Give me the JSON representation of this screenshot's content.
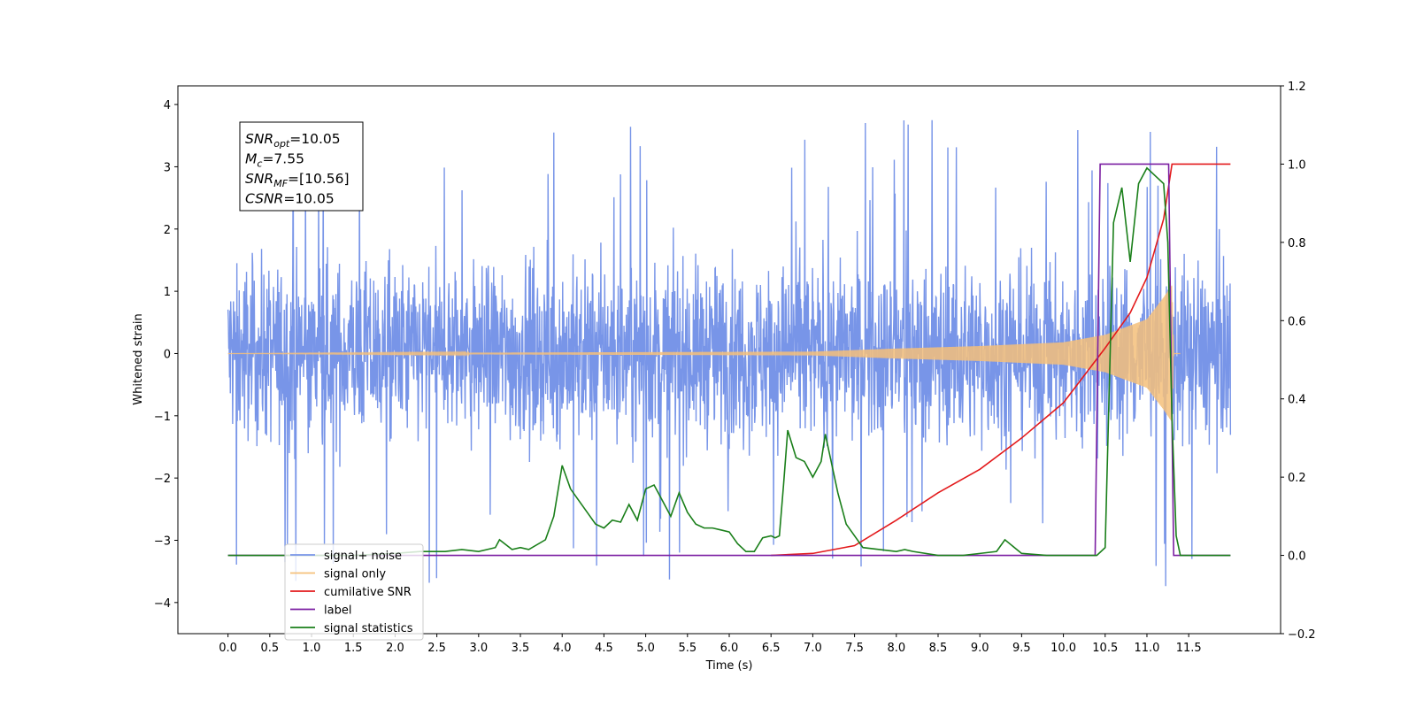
{
  "chart_data": {
    "type": "line",
    "xlabel": "Time (s)",
    "ylabel": "Whitened strain",
    "xlim": [
      -0.6,
      12.6
    ],
    "ylim": [
      -4.5,
      4.3
    ],
    "y2lim": [
      -0.2,
      1.2
    ],
    "x_ticks": [
      0.0,
      0.5,
      1.0,
      1.5,
      2.0,
      2.5,
      3.0,
      3.5,
      4.0,
      4.5,
      5.0,
      5.5,
      6.0,
      6.5,
      7.0,
      7.5,
      8.0,
      8.5,
      9.0,
      9.5,
      10.0,
      10.5,
      11.0,
      11.5
    ],
    "x_tick_labels": [
      "0.0",
      "0.5",
      "1.0",
      "1.5",
      "2.0",
      "2.5",
      "3.0",
      "3.5",
      "4.0",
      "4.5",
      "5.0",
      "5.5",
      "6.0",
      "6.5",
      "7.0",
      "7.5",
      "8.0",
      "8.5",
      "9.0",
      "9.5",
      "10.0",
      "10.5",
      "11.0",
      "11.5"
    ],
    "y_ticks": [
      -4,
      -3,
      -2,
      -1,
      0,
      1,
      2,
      3,
      4
    ],
    "y_tick_labels": [
      "−4",
      "−3",
      "−2",
      "−1",
      "0",
      "1",
      "2",
      "3",
      "4"
    ],
    "y2_ticks": [
      -0.2,
      0.0,
      0.2,
      0.4,
      0.6,
      0.8,
      1.0,
      1.2
    ],
    "y2_tick_labels": [
      "−0.2",
      "0.0",
      "0.2",
      "0.4",
      "0.6",
      "0.8",
      "1.0",
      "1.2"
    ],
    "grid": false,
    "legend_position": "lower-left",
    "annotation": [
      {
        "sym": "SNR",
        "sub": "opt",
        "val": "=10.05"
      },
      {
        "sym": "M",
        "sub": "c",
        "val": "=7.55"
      },
      {
        "sym": "SNR",
        "sub": "MF",
        "val": "=[10.56]"
      },
      {
        "sym": "CSNR",
        "sub": "",
        "val": "=10.05"
      }
    ],
    "series": [
      {
        "name": "signal+ noise",
        "color": "#7895e8",
        "axis": "left",
        "kind": "noise",
        "x_range": [
          0.0,
          12.0
        ],
        "band_y": [
          -2.2,
          2.2
        ],
        "spike_y": [
          -4.1,
          3.9
        ]
      },
      {
        "name": "signal only",
        "color": "#f5c07a",
        "axis": "left",
        "kind": "chirp",
        "x_range": [
          0.0,
          11.4
        ],
        "envelope": [
          [
            0.0,
            0.0
          ],
          [
            7.0,
            0.03
          ],
          [
            8.0,
            0.08
          ],
          [
            9.0,
            0.12
          ],
          [
            10.0,
            0.18
          ],
          [
            10.5,
            0.3
          ],
          [
            11.0,
            0.55
          ],
          [
            11.2,
            0.9
          ],
          [
            11.3,
            1.1
          ],
          [
            11.32,
            0.0
          ],
          [
            11.4,
            0.0
          ]
        ]
      },
      {
        "name": "cumilative SNR",
        "color": "#e31a1c",
        "axis": "right",
        "x": [
          6.5,
          7.0,
          7.5,
          8.0,
          8.5,
          9.0,
          9.5,
          10.0,
          10.5,
          10.8,
          11.0,
          11.2,
          11.3,
          11.4,
          12.0
        ],
        "y": [
          0.0,
          0.005,
          0.025,
          0.09,
          0.16,
          0.22,
          0.3,
          0.39,
          0.53,
          0.62,
          0.71,
          0.86,
          1.0,
          1.0,
          1.0
        ]
      },
      {
        "name": "label",
        "color": "#7b1fa2",
        "axis": "right",
        "x": [
          0.0,
          10.38,
          10.44,
          11.26,
          11.32,
          12.0
        ],
        "y": [
          0.0,
          0.0,
          1.0,
          1.0,
          0.0,
          0.0
        ]
      },
      {
        "name": "signal statistics",
        "color": "#1a7f1a",
        "axis": "right",
        "x": [
          0.0,
          0.5,
          1.0,
          1.5,
          2.0,
          2.3,
          2.6,
          2.8,
          3.0,
          3.2,
          3.25,
          3.4,
          3.5,
          3.6,
          3.8,
          3.9,
          4.0,
          4.1,
          4.2,
          4.3,
          4.4,
          4.5,
          4.6,
          4.7,
          4.8,
          4.9,
          5.0,
          5.1,
          5.2,
          5.3,
          5.4,
          5.5,
          5.6,
          5.7,
          5.8,
          5.9,
          6.0,
          6.1,
          6.2,
          6.3,
          6.4,
          6.5,
          6.55,
          6.6,
          6.65,
          6.7,
          6.8,
          6.9,
          7.0,
          7.1,
          7.15,
          7.2,
          7.3,
          7.4,
          7.5,
          7.6,
          7.8,
          8.0,
          8.1,
          8.2,
          8.5,
          8.8,
          9.0,
          9.2,
          9.3,
          9.5,
          9.8,
          10.0,
          10.4,
          10.5,
          10.6,
          10.7,
          10.8,
          10.9,
          11.0,
          11.1,
          11.2,
          11.25,
          11.3,
          11.35,
          11.4,
          11.5,
          12.0
        ],
        "y": [
          0.0,
          0.0,
          0.0,
          0.0,
          0.005,
          0.01,
          0.01,
          0.015,
          0.01,
          0.02,
          0.04,
          0.015,
          0.02,
          0.015,
          0.04,
          0.1,
          0.23,
          0.17,
          0.14,
          0.11,
          0.08,
          0.07,
          0.09,
          0.085,
          0.13,
          0.09,
          0.17,
          0.18,
          0.14,
          0.1,
          0.16,
          0.11,
          0.08,
          0.07,
          0.07,
          0.065,
          0.06,
          0.03,
          0.01,
          0.01,
          0.045,
          0.05,
          0.045,
          0.05,
          0.18,
          0.32,
          0.25,
          0.24,
          0.2,
          0.24,
          0.31,
          0.26,
          0.16,
          0.08,
          0.05,
          0.02,
          0.015,
          0.01,
          0.015,
          0.01,
          0.0,
          0.0,
          0.005,
          0.01,
          0.04,
          0.005,
          0.0,
          0.0,
          0.0,
          0.02,
          0.85,
          0.94,
          0.75,
          0.95,
          0.99,
          0.97,
          0.95,
          0.8,
          0.35,
          0.05,
          0.0,
          0.0,
          0.0
        ]
      }
    ]
  }
}
